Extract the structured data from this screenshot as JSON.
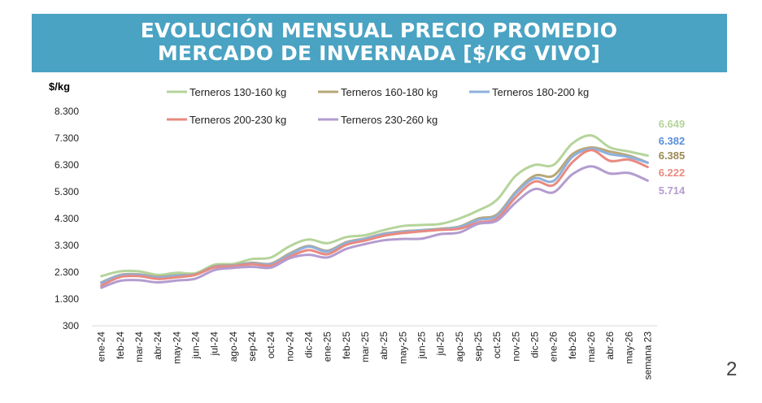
{
  "chart_data": {
    "type": "line",
    "title_line1": "EVOLUCIÓN MENSUAL PRECIO PROMEDIO",
    "title_line2": "MERCADO DE INVERNADA [$/KG VIVO]",
    "ylabel": "$/kg",
    "ylim": [
      300,
      8300
    ],
    "yticks": [
      "8.300",
      "7.300",
      "6.300",
      "5.300",
      "4.300",
      "3.300",
      "2.300",
      "1.300",
      "300"
    ],
    "ytick_values": [
      8300,
      7300,
      6300,
      5300,
      4300,
      3300,
      2300,
      1300,
      300
    ],
    "categories": [
      "ene-24",
      "feb-24",
      "mar-24",
      "abr-24",
      "may-24",
      "jun-24",
      "jul-24",
      "ago-24",
      "sep-24",
      "oct-24",
      "nov-24",
      "dic-24",
      "ene-25",
      "feb-25",
      "mar-25",
      "abr-25",
      "may-25",
      "jun-25",
      "jul-25",
      "ago-25",
      "sep-25",
      "oct-25",
      "nov-25",
      "dic-25",
      "ene-26",
      "feb-26",
      "mar-26",
      "abr-26",
      "may-26",
      "semana 23"
    ],
    "legend_position": "top",
    "series": [
      {
        "name": "Terneros 130-160 kg",
        "color": "#b5d49b",
        "end_label": "6.649",
        "values": [
          2150,
          2330,
          2330,
          2200,
          2280,
          2260,
          2580,
          2610,
          2790,
          2850,
          3270,
          3520,
          3380,
          3610,
          3680,
          3870,
          4020,
          4060,
          4100,
          4300,
          4600,
          5000,
          5900,
          6300,
          6300,
          7100,
          7400,
          6950,
          6800,
          6649
        ]
      },
      {
        "name": "Terneros 160-180 kg",
        "color": "#b8a878",
        "end_label": "6.385",
        "values": [
          1920,
          2200,
          2220,
          2130,
          2190,
          2230,
          2520,
          2560,
          2650,
          2620,
          3000,
          3280,
          3100,
          3420,
          3560,
          3740,
          3820,
          3870,
          3920,
          4000,
          4300,
          4450,
          5300,
          5900,
          5900,
          6700,
          6950,
          6800,
          6650,
          6385
        ]
      },
      {
        "name": "Terneros 180-200 kg",
        "color": "#8eb0de",
        "end_label": "6.382",
        "values": [
          1900,
          2180,
          2200,
          2100,
          2170,
          2210,
          2500,
          2540,
          2630,
          2600,
          2960,
          3250,
          3070,
          3390,
          3540,
          3720,
          3800,
          3860,
          3900,
          3980,
          4250,
          4400,
          5250,
          5800,
          5700,
          6600,
          6900,
          6700,
          6600,
          6382
        ]
      },
      {
        "name": "Terneros 200-230 kg",
        "color": "#e88a80",
        "end_label": "6.222",
        "values": [
          1800,
          2120,
          2150,
          2050,
          2110,
          2200,
          2480,
          2520,
          2600,
          2550,
          2880,
          3120,
          2970,
          3320,
          3480,
          3660,
          3760,
          3820,
          3880,
          3920,
          4150,
          4300,
          5100,
          5680,
          5550,
          6400,
          6850,
          6450,
          6500,
          6222
        ]
      },
      {
        "name": "Terneros 230-260 kg",
        "color": "#b39ccf",
        "end_label": "5.714",
        "values": [
          1720,
          1980,
          2000,
          1920,
          1990,
          2060,
          2380,
          2460,
          2500,
          2470,
          2820,
          2950,
          2850,
          3170,
          3350,
          3490,
          3540,
          3550,
          3720,
          3780,
          4100,
          4220,
          4900,
          5400,
          5280,
          5950,
          6250,
          5980,
          6000,
          5714
        ]
      }
    ]
  },
  "page_number": "2"
}
